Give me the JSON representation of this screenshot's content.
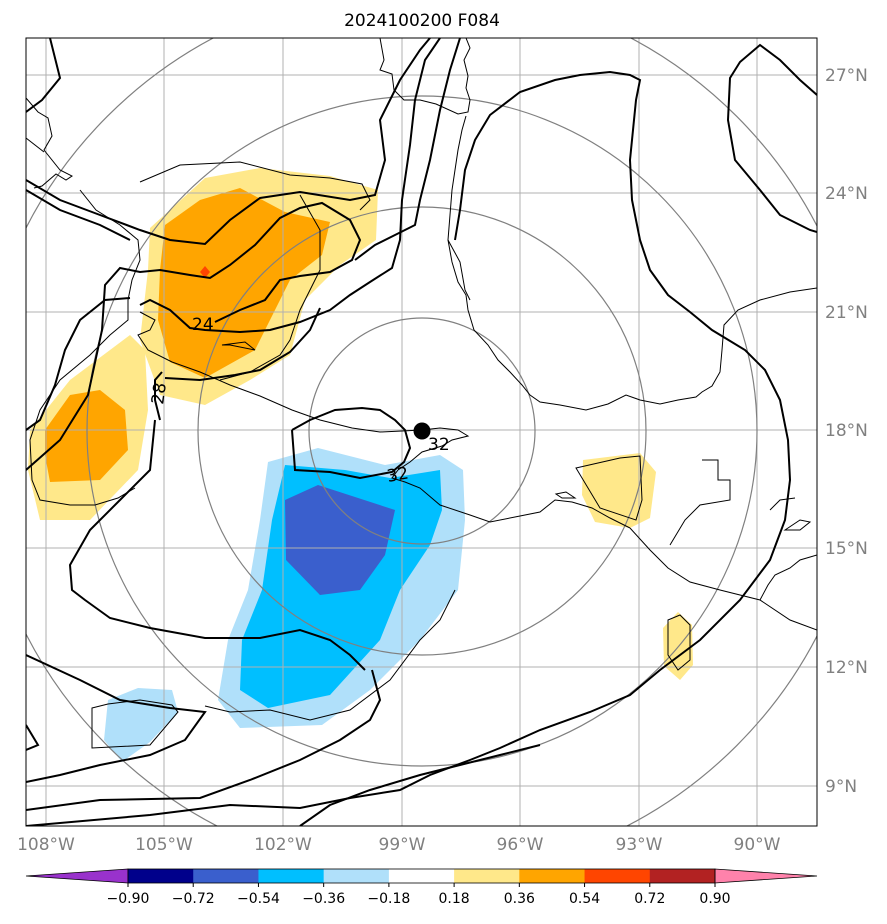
{
  "map": {
    "title": "2024100200 F084",
    "lon_labels": [
      "108°W",
      "105°W",
      "102°W",
      "99°W",
      "96°W",
      "93°W",
      "90°W"
    ],
    "lat_labels": [
      "27°N",
      "24°N",
      "21°N",
      "18°N",
      "15°N",
      "12°N",
      "9°N"
    ],
    "contour_labels": [
      "24",
      "28",
      "32",
      "32"
    ],
    "storm_marker": "storm-center-dot"
  },
  "colorbar": {
    "ticks": [
      "−0.90",
      "−0.72",
      "−0.54",
      "−0.36",
      "−0.18",
      "0.18",
      "0.36",
      "0.54",
      "0.72",
      "0.90"
    ],
    "colors": [
      "#9932cc",
      "#00008b",
      "#3a5fcd",
      "#00bfff",
      "#b0e0fa",
      "#ffffff",
      "#ffe88a",
      "#ffa500",
      "#ff4500",
      "#b22222",
      "#ff82ab"
    ]
  }
}
